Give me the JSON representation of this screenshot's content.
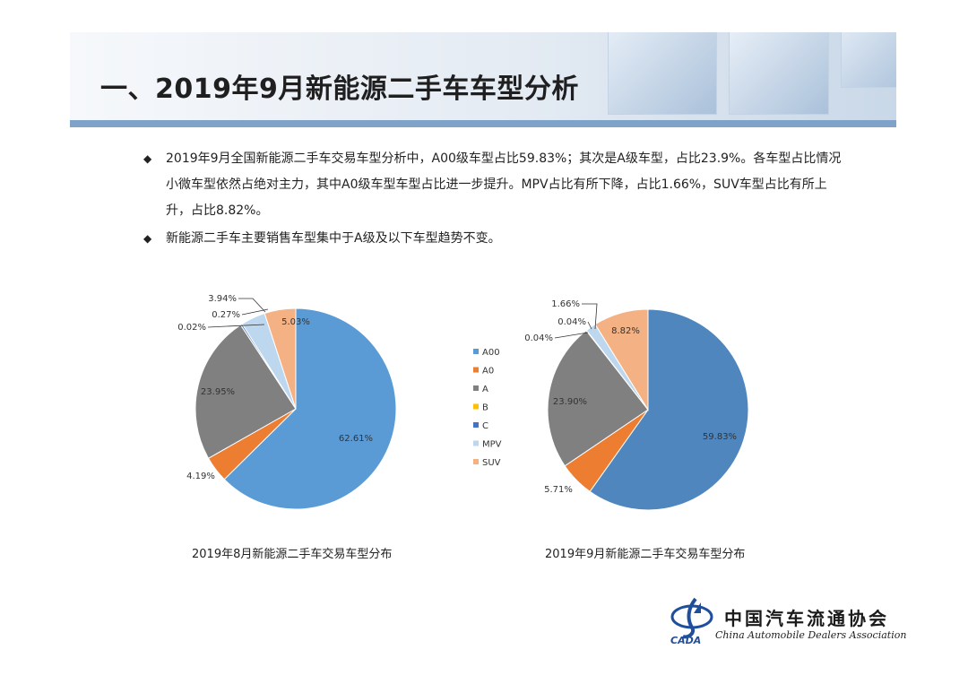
{
  "page": {
    "title": "一、2019年9月新能源二手车车型分析",
    "bullets": [
      "2019年9月全国新能源二手车交易车型分析中，A00级车型占比59.83%；其次是A级车型，占比23.9%。各车型占比情况小微车型依然占绝对主力，其中A0级车型车型占比进一步提升。MPV占比有所下降，占比1.66%，SUV车型占比有所上升，占比8.82%。",
      "新能源二手车主要销售车型集中于A级及以下车型趋势不变。"
    ],
    "bullet_symbol": "◆"
  },
  "legend": {
    "items": [
      "A00",
      "A0",
      "A",
      "B",
      "C",
      "MPV",
      "SUV"
    ],
    "colors": [
      "#5b9bd5",
      "#ed7d31",
      "#808080",
      "#ffc000",
      "#4472c4",
      "#bdd7ee",
      "#f4b183"
    ]
  },
  "chart_data": [
    {
      "type": "pie",
      "title": "2019年8月新能源二手车交易车型分布",
      "categories": [
        "A00",
        "A0",
        "A",
        "B",
        "C",
        "MPV",
        "SUV"
      ],
      "values": [
        62.61,
        4.19,
        23.95,
        0.02,
        0.27,
        3.94,
        5.03
      ],
      "labels": [
        "62.61%",
        "4.19%",
        "23.95%",
        "0.02%",
        "0.27%",
        "3.94%",
        "5.03%"
      ],
      "colors": [
        "#5b9bd5",
        "#ed7d31",
        "#808080",
        "#ffc000",
        "#4472c4",
        "#bdd7ee",
        "#f4b183"
      ]
    },
    {
      "type": "pie",
      "title": "2019年9月新能源二手车交易车型分布",
      "categories": [
        "A00",
        "A0",
        "A",
        "B",
        "C",
        "MPV",
        "SUV"
      ],
      "values": [
        59.83,
        5.71,
        23.9,
        0.04,
        0.04,
        1.66,
        8.82
      ],
      "labels": [
        "59.83%",
        "5.71%",
        "23.90%",
        "0.04%",
        "0.04%",
        "1.66%",
        "8.82%"
      ],
      "colors": [
        "#4f86bd",
        "#ed7d31",
        "#808080",
        "#ffc000",
        "#4472c4",
        "#bdd7ee",
        "#f4b183"
      ]
    }
  ],
  "logo": {
    "name_cn": "中国汽车流通协会",
    "name_en": "China Automobile Dealers Association",
    "abbr": "CADA"
  }
}
